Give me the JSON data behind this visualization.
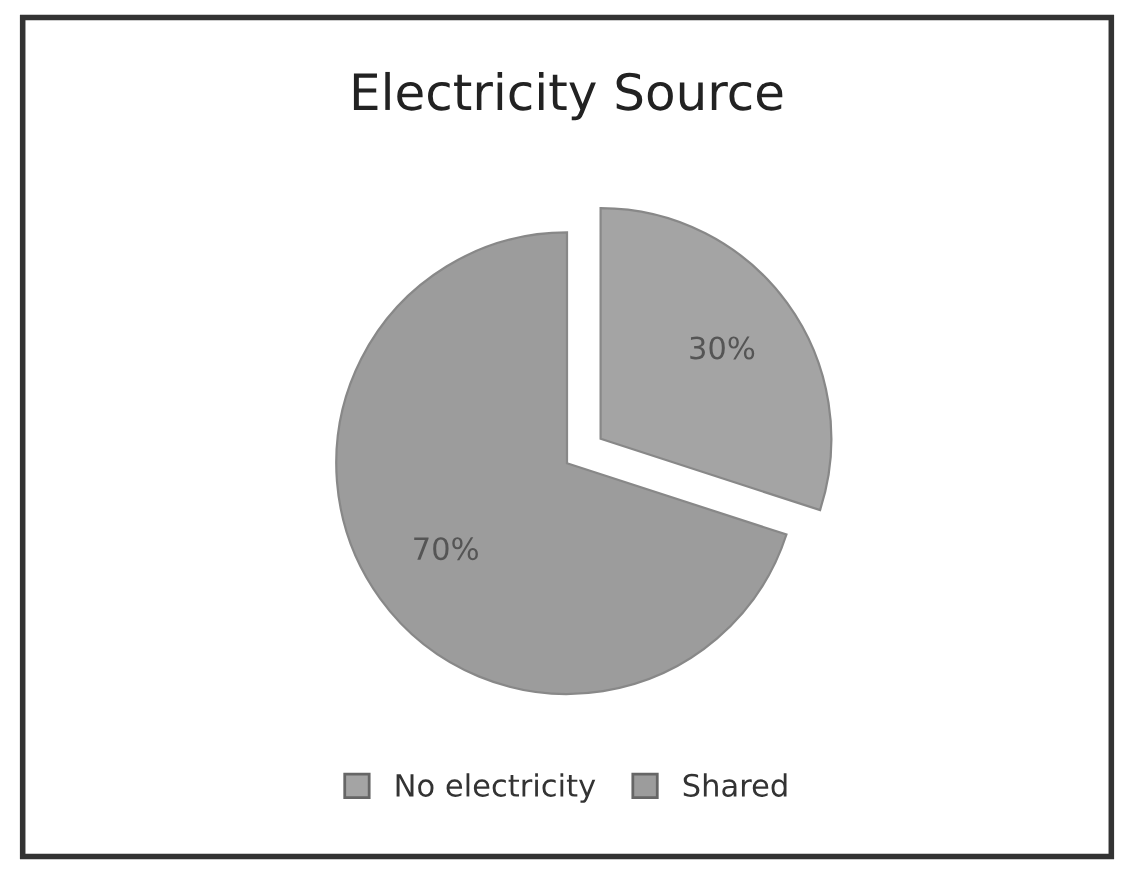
{
  "chart_data": {
    "type": "pie",
    "title": "Electricity Source",
    "categories": [
      "No electricity",
      "Shared"
    ],
    "values": [
      30,
      70
    ],
    "colors": [
      "#a4a4a4",
      "#9c9c9c"
    ],
    "value_labels": [
      "30%",
      "70%"
    ],
    "legend": "bottom"
  }
}
